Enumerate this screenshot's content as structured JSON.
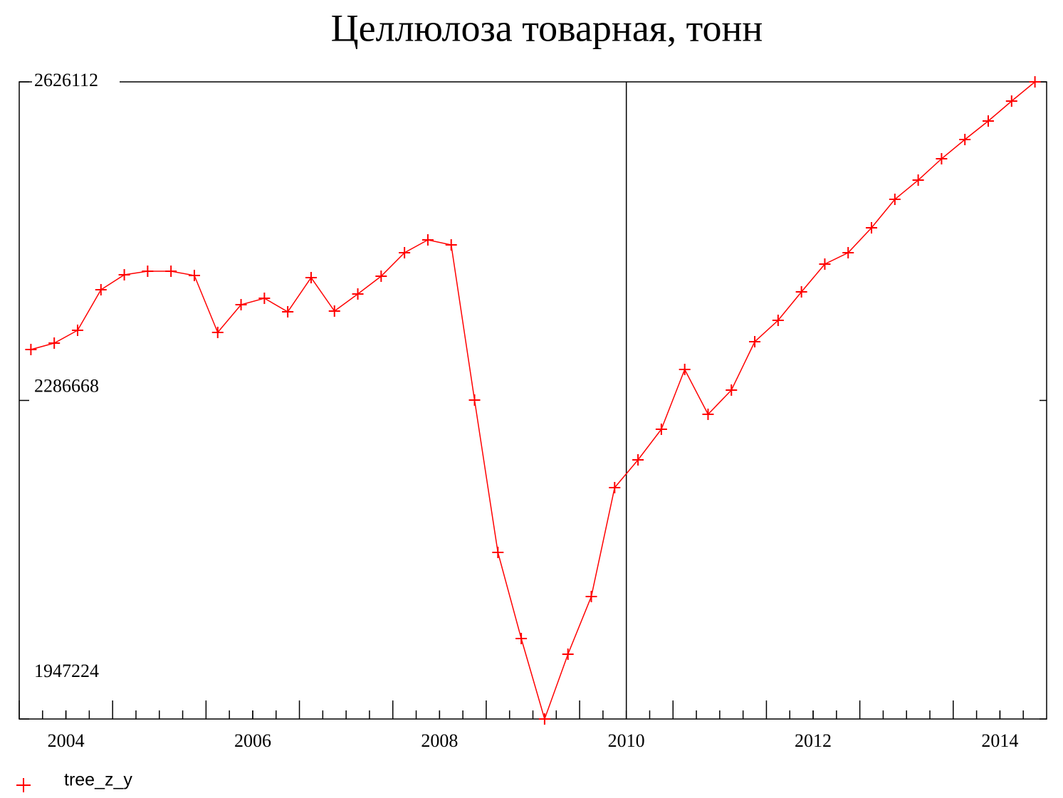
{
  "chart_data": {
    "type": "line",
    "title": "Целлюлоза товарная, тонн",
    "x": [
      2003.625,
      2003.875,
      2004.125,
      2004.375,
      2004.625,
      2004.875,
      2005.125,
      2005.375,
      2005.625,
      2005.875,
      2006.125,
      2006.375,
      2006.625,
      2006.875,
      2007.125,
      2007.375,
      2007.625,
      2007.875,
      2008.125,
      2008.375,
      2008.625,
      2008.875,
      2009.125,
      2009.375,
      2009.625,
      2009.875,
      2010.125,
      2010.375,
      2010.625,
      2010.875,
      2011.125,
      2011.375,
      2011.625,
      2011.875,
      2012.125,
      2012.375,
      2012.625,
      2012.875,
      2013.125,
      2013.375,
      2013.625,
      2013.875,
      2014.125,
      2014.375
    ],
    "series": [
      {
        "name": "tree_z_y",
        "color": "#ff0000",
        "values": [
          2340901,
          2347728,
          2361381,
          2404618,
          2420547,
          2424339,
          2424339,
          2419788,
          2359106,
          2388688,
          2395515,
          2381103,
          2417513,
          2381862,
          2400066,
          2419030,
          2444061,
          2457715,
          2452405,
          2287045,
          2124720,
          2032938,
          1947224,
          2016250,
          2077691,
          2193746,
          2223329,
          2255946,
          2319662,
          2271875,
          2297665,
          2349245,
          2372001,
          2402342,
          2431925,
          2444061,
          2470610,
          2500951,
          2521431,
          2544187,
          2564667,
          2584389,
          2605628,
          2626112
        ]
      }
    ],
    "xlim": [
      2003.5,
      2014.5
    ],
    "xticks": [
      2004,
      2006,
      2008,
      2010,
      2012,
      2014
    ],
    "ylim": [
      1947224,
      2626112
    ],
    "yticks": [
      1947224,
      2286668,
      2626112
    ],
    "vline": 2010
  }
}
